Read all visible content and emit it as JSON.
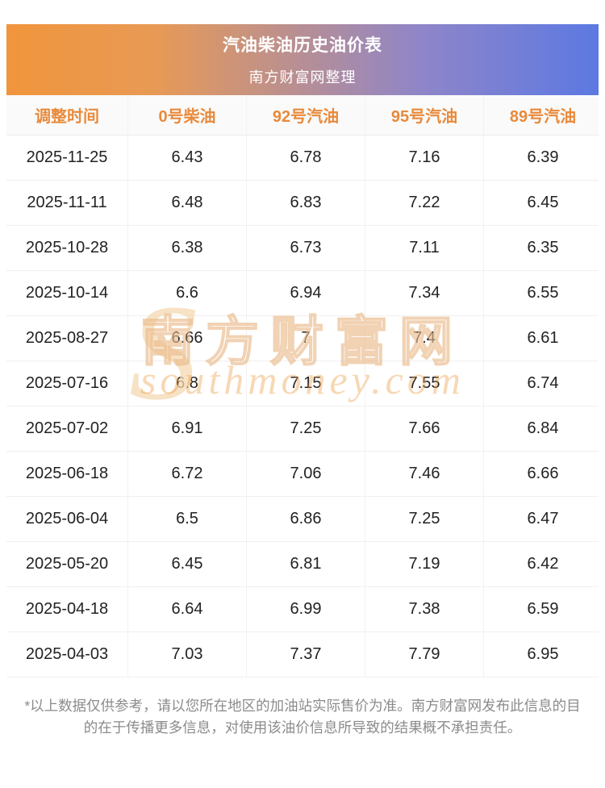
{
  "header": {
    "title": "汽油柴油历史油价表",
    "subtitle": "南方财富网整理"
  },
  "chart_data": {
    "type": "table",
    "title": "汽油柴油历史油价表",
    "subtitle": "南方财富网整理",
    "columns": [
      "调整时间",
      "0号柴油",
      "92号汽油",
      "95号汽油",
      "89号汽油"
    ],
    "rows": [
      {
        "date": "2025-11-25",
        "values": [
          "6.43",
          "6.78",
          "7.16",
          "6.39"
        ]
      },
      {
        "date": "2025-11-11",
        "values": [
          "6.48",
          "6.83",
          "7.22",
          "6.45"
        ]
      },
      {
        "date": "2025-10-28",
        "values": [
          "6.38",
          "6.73",
          "7.11",
          "6.35"
        ]
      },
      {
        "date": "2025-10-14",
        "values": [
          "6.6",
          "6.94",
          "7.34",
          "6.55"
        ]
      },
      {
        "date": "2025-08-27",
        "values": [
          "6.66",
          "7",
          "7.4",
          "6.61"
        ]
      },
      {
        "date": "2025-07-16",
        "values": [
          "6.8",
          "7.15",
          "7.55",
          "6.74"
        ]
      },
      {
        "date": "2025-07-02",
        "values": [
          "6.91",
          "7.25",
          "7.66",
          "6.84"
        ]
      },
      {
        "date": "2025-06-18",
        "values": [
          "6.72",
          "7.06",
          "7.46",
          "6.66"
        ]
      },
      {
        "date": "2025-06-04",
        "values": [
          "6.5",
          "6.86",
          "7.25",
          "6.47"
        ]
      },
      {
        "date": "2025-05-20",
        "values": [
          "6.45",
          "6.81",
          "7.19",
          "6.42"
        ]
      },
      {
        "date": "2025-04-18",
        "values": [
          "6.64",
          "6.99",
          "7.38",
          "6.59"
        ]
      },
      {
        "date": "2025-04-03",
        "values": [
          "7.03",
          "7.37",
          "7.79",
          "6.95"
        ]
      }
    ]
  },
  "watermark": {
    "logo": "S",
    "text": "南方财富网",
    "subtext": "southmoney.com"
  },
  "disclaimer": "*以上数据仅供参考，请以您所在地区的加油站实际售价为准。南方财富网发布此信息的目的在于传播更多信息，对使用该油价信息所导致的结果概不承担责任。",
  "colors": {
    "banner_gradient_left": "#f0953c",
    "banner_gradient_right": "#5c79e2",
    "banner_text": "#ffffff",
    "column_header_text": "#e98a3a",
    "body_text": "#222222",
    "row_divider": "#f0f0f0",
    "watermark": "#f4d8b2",
    "disclaimer_text": "#8b8b8b"
  }
}
